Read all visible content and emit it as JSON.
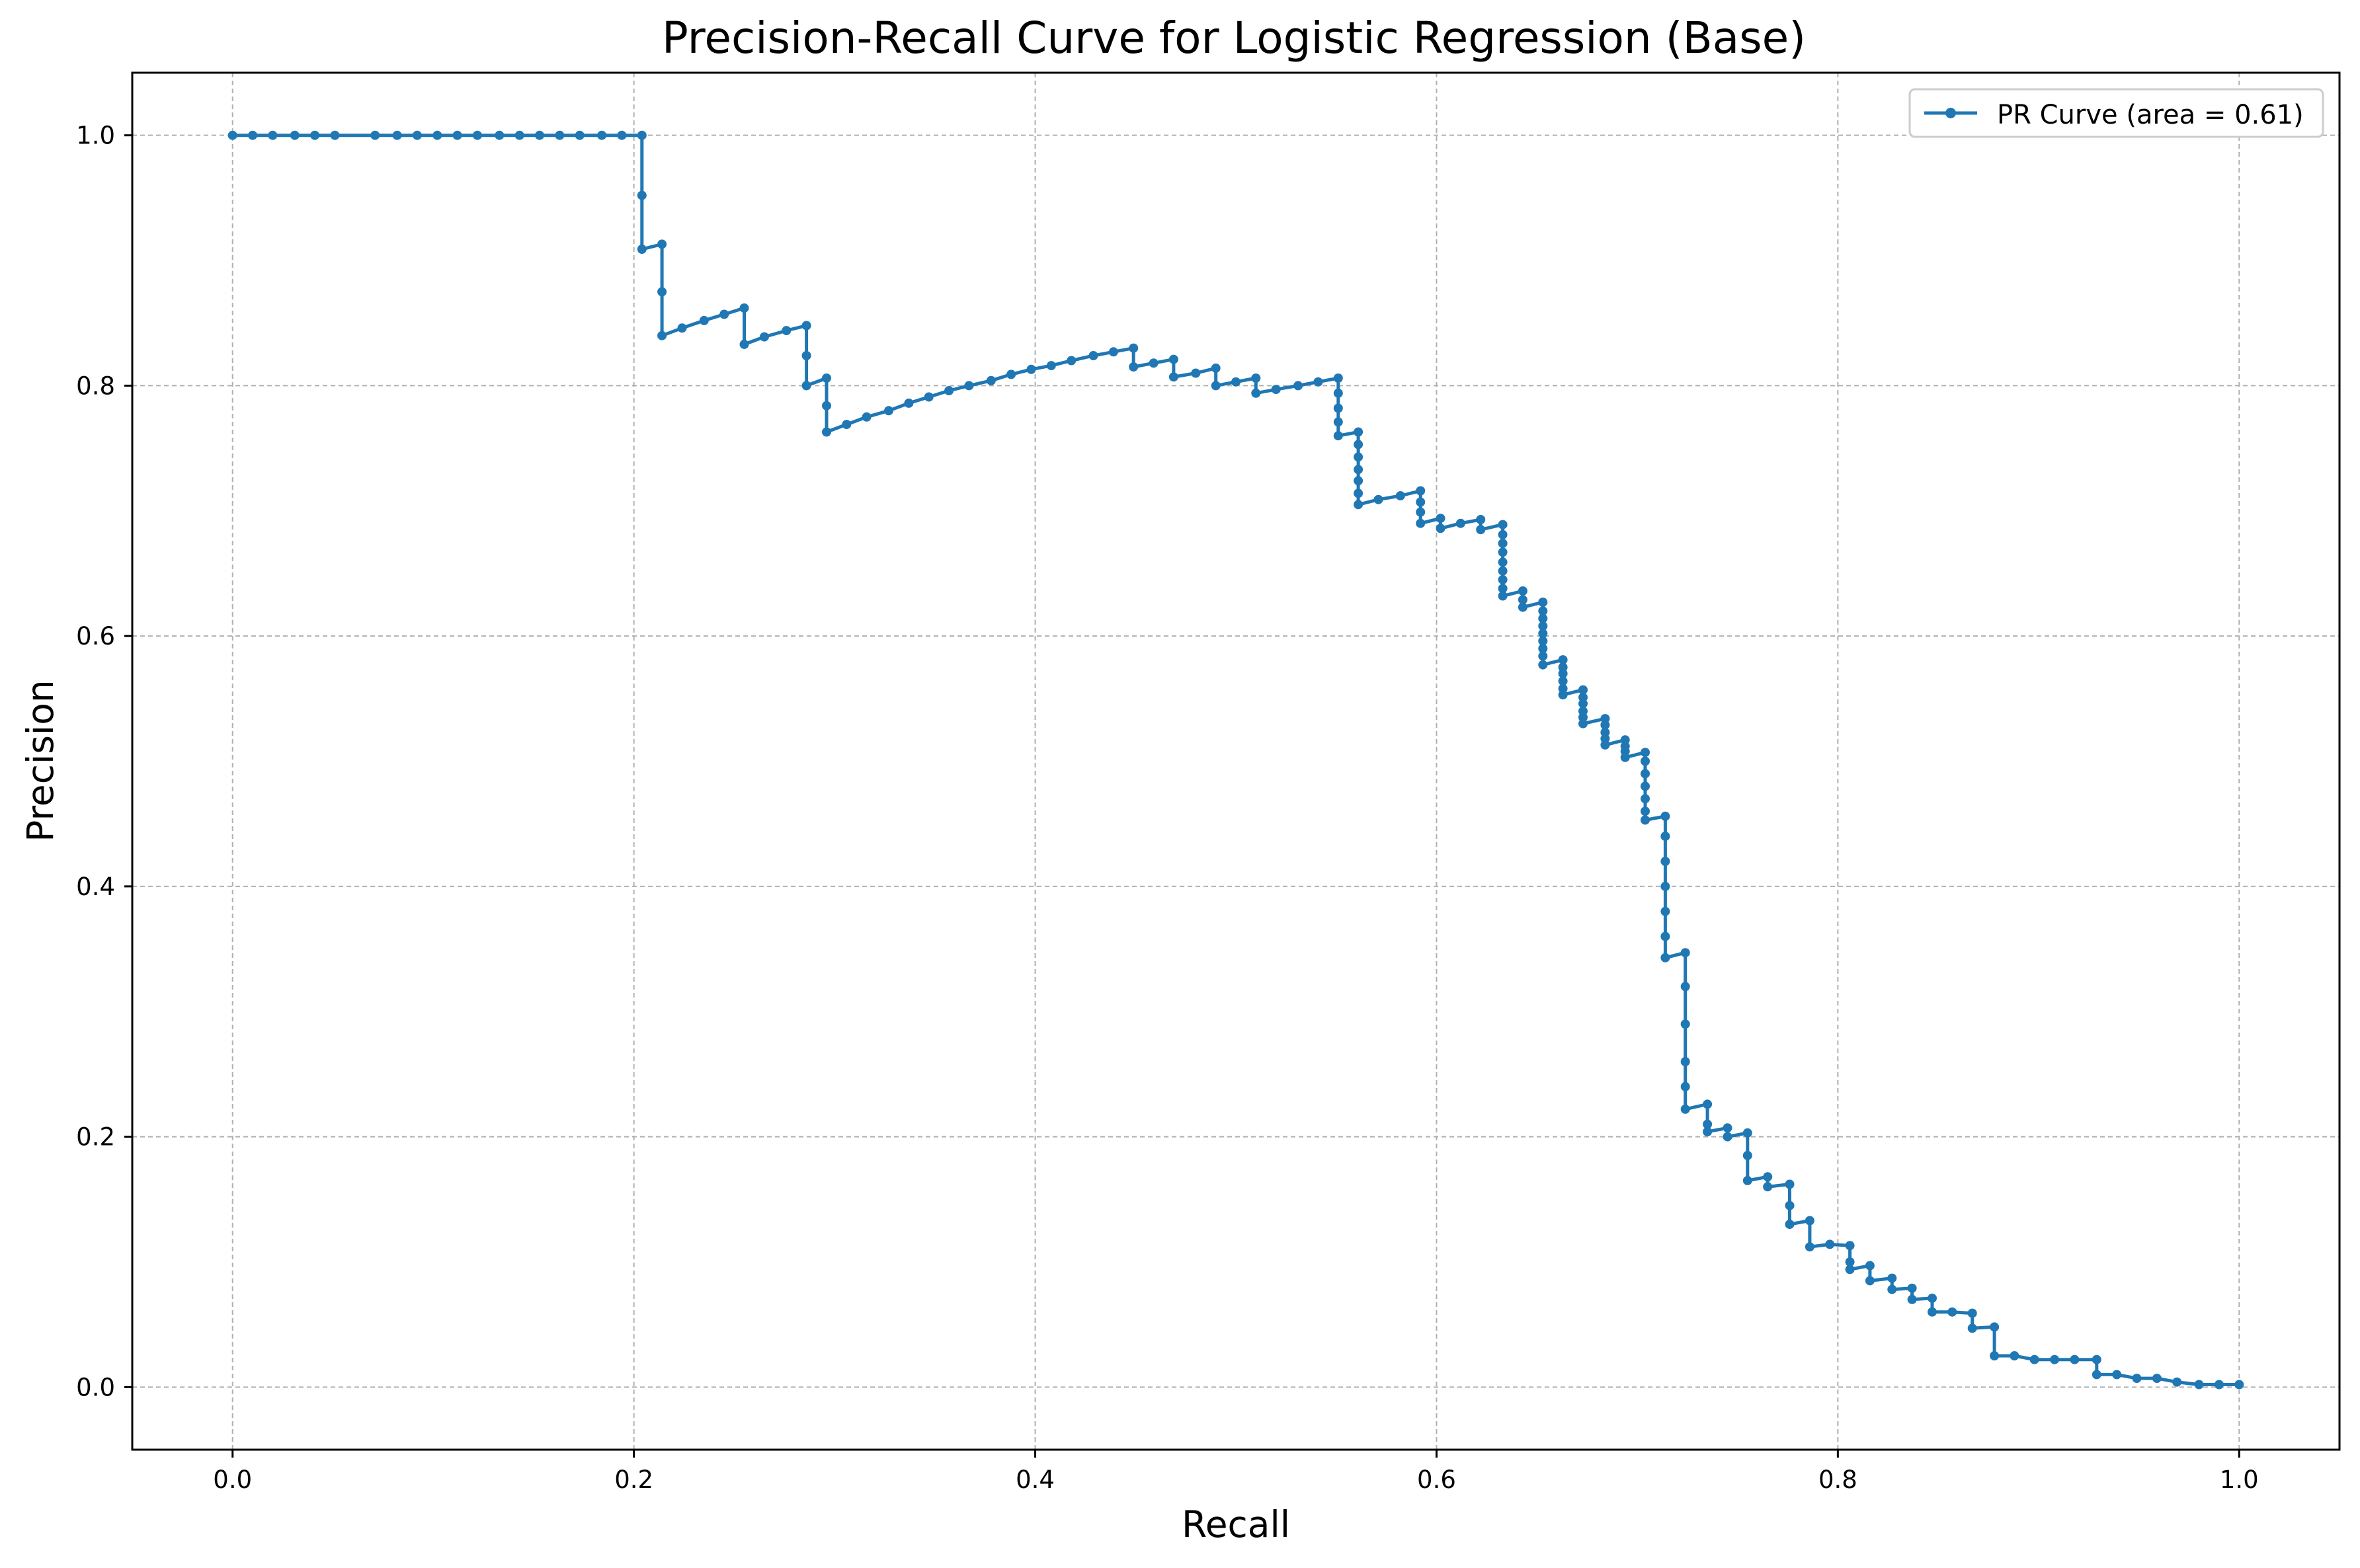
{
  "chart_data": {
    "type": "line",
    "title": "Precision-Recall Curve for Logistic Regression (Base)",
    "xlabel": "Recall",
    "ylabel": "Precision",
    "xlim": [
      -0.05,
      1.05
    ],
    "ylim": [
      -0.05,
      1.05
    ],
    "xticks": [
      0.0,
      0.2,
      0.4,
      0.6,
      0.8,
      1.0
    ],
    "xtick_labels": [
      "0.0",
      "0.2",
      "0.4",
      "0.6",
      "0.8",
      "1.0"
    ],
    "yticks": [
      0.0,
      0.2,
      0.4,
      0.6,
      0.8,
      1.0
    ],
    "ytick_labels": [
      "0.0",
      "0.2",
      "0.4",
      "0.6",
      "0.8",
      "1.0"
    ],
    "grid": true,
    "legend": {
      "position": "upper right",
      "entries": [
        "PR Curve (area = 0.61)"
      ]
    },
    "series": [
      {
        "name": "PR Curve (area = 0.61)",
        "color": "#1f77b4",
        "marker": "circle",
        "points": [
          [
            0.0,
            1.0
          ],
          [
            0.01,
            1.0
          ],
          [
            0.02,
            1.0
          ],
          [
            0.031,
            1.0
          ],
          [
            0.041,
            1.0
          ],
          [
            0.051,
            1.0
          ],
          [
            0.071,
            1.0
          ],
          [
            0.082,
            1.0
          ],
          [
            0.092,
            1.0
          ],
          [
            0.102,
            1.0
          ],
          [
            0.112,
            1.0
          ],
          [
            0.122,
            1.0
          ],
          [
            0.133,
            1.0
          ],
          [
            0.143,
            1.0
          ],
          [
            0.153,
            1.0
          ],
          [
            0.163,
            1.0
          ],
          [
            0.173,
            1.0
          ],
          [
            0.184,
            1.0
          ],
          [
            0.194,
            1.0
          ],
          [
            0.204,
            1.0
          ],
          [
            0.204,
            0.952
          ],
          [
            0.204,
            0.909
          ],
          [
            0.214,
            0.913
          ],
          [
            0.214,
            0.875
          ],
          [
            0.214,
            0.84
          ],
          [
            0.224,
            0.846
          ],
          [
            0.235,
            0.852
          ],
          [
            0.245,
            0.857
          ],
          [
            0.255,
            0.862
          ],
          [
            0.255,
            0.833
          ],
          [
            0.265,
            0.839
          ],
          [
            0.276,
            0.844
          ],
          [
            0.286,
            0.848
          ],
          [
            0.286,
            0.824
          ],
          [
            0.286,
            0.8
          ],
          [
            0.296,
            0.806
          ],
          [
            0.296,
            0.784
          ],
          [
            0.296,
            0.763
          ],
          [
            0.306,
            0.769
          ],
          [
            0.316,
            0.775
          ],
          [
            0.327,
            0.78
          ],
          [
            0.337,
            0.786
          ],
          [
            0.347,
            0.791
          ],
          [
            0.357,
            0.796
          ],
          [
            0.367,
            0.8
          ],
          [
            0.378,
            0.804
          ],
          [
            0.388,
            0.809
          ],
          [
            0.398,
            0.813
          ],
          [
            0.408,
            0.816
          ],
          [
            0.418,
            0.82
          ],
          [
            0.429,
            0.824
          ],
          [
            0.439,
            0.827
          ],
          [
            0.449,
            0.83
          ],
          [
            0.449,
            0.815
          ],
          [
            0.459,
            0.818
          ],
          [
            0.469,
            0.821
          ],
          [
            0.469,
            0.807
          ],
          [
            0.48,
            0.81
          ],
          [
            0.49,
            0.814
          ],
          [
            0.49,
            0.8
          ],
          [
            0.5,
            0.803
          ],
          [
            0.51,
            0.806
          ],
          [
            0.51,
            0.794
          ],
          [
            0.52,
            0.797
          ],
          [
            0.531,
            0.8
          ],
          [
            0.541,
            0.803
          ],
          [
            0.551,
            0.806
          ],
          [
            0.551,
            0.794
          ],
          [
            0.551,
            0.782
          ],
          [
            0.551,
            0.771
          ],
          [
            0.551,
            0.76
          ],
          [
            0.561,
            0.763
          ],
          [
            0.561,
            0.753
          ],
          [
            0.561,
            0.743
          ],
          [
            0.561,
            0.733
          ],
          [
            0.561,
            0.724
          ],
          [
            0.561,
            0.714
          ],
          [
            0.561,
            0.705
          ],
          [
            0.571,
            0.709
          ],
          [
            0.582,
            0.712
          ],
          [
            0.592,
            0.716
          ],
          [
            0.592,
            0.707
          ],
          [
            0.592,
            0.699
          ],
          [
            0.592,
            0.69
          ],
          [
            0.602,
            0.694
          ],
          [
            0.602,
            0.686
          ],
          [
            0.612,
            0.69
          ],
          [
            0.622,
            0.693
          ],
          [
            0.622,
            0.685
          ],
          [
            0.633,
            0.689
          ],
          [
            0.633,
            0.681
          ],
          [
            0.633,
            0.674
          ],
          [
            0.633,
            0.667
          ],
          [
            0.633,
            0.659
          ],
          [
            0.633,
            0.652
          ],
          [
            0.633,
            0.645
          ],
          [
            0.633,
            0.638
          ],
          [
            0.633,
            0.632
          ],
          [
            0.643,
            0.636
          ],
          [
            0.643,
            0.629
          ],
          [
            0.643,
            0.623
          ],
          [
            0.653,
            0.627
          ],
          [
            0.653,
            0.62
          ],
          [
            0.653,
            0.614
          ],
          [
            0.653,
            0.608
          ],
          [
            0.653,
            0.602
          ],
          [
            0.653,
            0.596
          ],
          [
            0.653,
            0.59
          ],
          [
            0.653,
            0.584
          ],
          [
            0.653,
            0.577
          ],
          [
            0.663,
            0.581
          ],
          [
            0.663,
            0.575
          ],
          [
            0.663,
            0.57
          ],
          [
            0.663,
            0.564
          ],
          [
            0.663,
            0.558
          ],
          [
            0.663,
            0.553
          ],
          [
            0.673,
            0.557
          ],
          [
            0.673,
            0.551
          ],
          [
            0.673,
            0.546
          ],
          [
            0.673,
            0.54
          ],
          [
            0.673,
            0.535
          ],
          [
            0.673,
            0.53
          ],
          [
            0.684,
            0.534
          ],
          [
            0.684,
            0.529
          ],
          [
            0.684,
            0.523
          ],
          [
            0.684,
            0.518
          ],
          [
            0.684,
            0.513
          ],
          [
            0.694,
            0.517
          ],
          [
            0.694,
            0.512
          ],
          [
            0.694,
            0.508
          ],
          [
            0.694,
            0.503
          ],
          [
            0.704,
            0.507
          ],
          [
            0.704,
            0.5
          ],
          [
            0.704,
            0.49
          ],
          [
            0.704,
            0.48
          ],
          [
            0.704,
            0.47
          ],
          [
            0.704,
            0.46
          ],
          [
            0.704,
            0.453
          ],
          [
            0.714,
            0.456
          ],
          [
            0.714,
            0.44
          ],
          [
            0.714,
            0.42
          ],
          [
            0.714,
            0.4
          ],
          [
            0.714,
            0.38
          ],
          [
            0.714,
            0.36
          ],
          [
            0.714,
            0.343
          ],
          [
            0.724,
            0.347
          ],
          [
            0.724,
            0.32
          ],
          [
            0.724,
            0.29
          ],
          [
            0.724,
            0.26
          ],
          [
            0.724,
            0.24
          ],
          [
            0.724,
            0.222
          ],
          [
            0.735,
            0.226
          ],
          [
            0.735,
            0.21
          ],
          [
            0.735,
            0.204
          ],
          [
            0.745,
            0.207
          ],
          [
            0.745,
            0.2
          ],
          [
            0.755,
            0.203
          ],
          [
            0.755,
            0.185
          ],
          [
            0.755,
            0.165
          ],
          [
            0.765,
            0.168
          ],
          [
            0.765,
            0.16
          ],
          [
            0.776,
            0.162
          ],
          [
            0.776,
            0.145
          ],
          [
            0.776,
            0.13
          ],
          [
            0.786,
            0.133
          ],
          [
            0.786,
            0.112
          ],
          [
            0.796,
            0.114
          ],
          [
            0.806,
            0.113
          ],
          [
            0.806,
            0.1
          ],
          [
            0.806,
            0.094
          ],
          [
            0.816,
            0.097
          ],
          [
            0.816,
            0.085
          ],
          [
            0.827,
            0.087
          ],
          [
            0.827,
            0.078
          ],
          [
            0.837,
            0.079
          ],
          [
            0.837,
            0.07
          ],
          [
            0.847,
            0.071
          ],
          [
            0.847,
            0.06
          ],
          [
            0.857,
            0.06
          ],
          [
            0.867,
            0.059
          ],
          [
            0.867,
            0.047
          ],
          [
            0.878,
            0.048
          ],
          [
            0.878,
            0.025
          ],
          [
            0.888,
            0.025
          ],
          [
            0.898,
            0.022
          ],
          [
            0.908,
            0.022
          ],
          [
            0.918,
            0.022
          ],
          [
            0.929,
            0.022
          ],
          [
            0.929,
            0.01
          ],
          [
            0.939,
            0.01
          ],
          [
            0.949,
            0.007
          ],
          [
            0.959,
            0.007
          ],
          [
            0.969,
            0.004
          ],
          [
            0.98,
            0.002
          ],
          [
            0.99,
            0.002
          ],
          [
            1.0,
            0.002
          ]
        ]
      }
    ]
  }
}
